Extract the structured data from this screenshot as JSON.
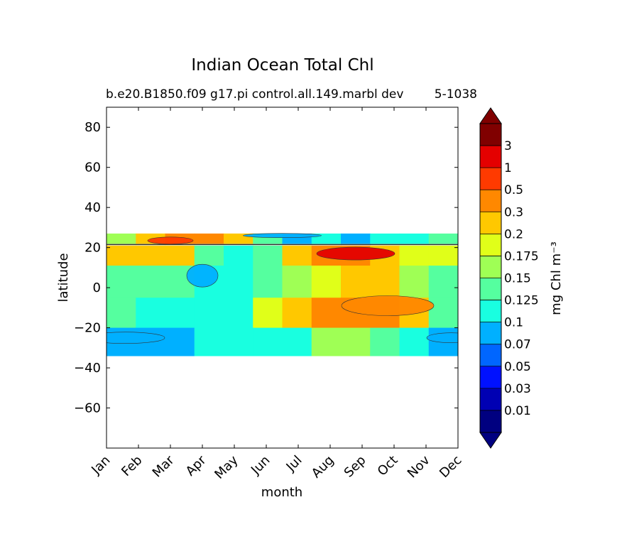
{
  "chart_data": {
    "type": "heatmap",
    "title": "Indian Ocean Total Chl",
    "subtitle_left": "b.e20.B1850.f09 g17.pi control.all.149.marbl dev",
    "subtitle_right": "5-1038",
    "xlabel": "month",
    "ylabel": "latitude",
    "x_categories": [
      "Jan",
      "Feb",
      "Mar",
      "Apr",
      "May",
      "Jun",
      "Jul",
      "Aug",
      "Sep",
      "Oct",
      "Nov",
      "Dec"
    ],
    "ylim": [
      -80,
      90
    ],
    "y_ticks": [
      80,
      60,
      40,
      20,
      0,
      -20,
      -40,
      -60
    ],
    "y_tick_labels": [
      "80",
      "60",
      "40",
      "20",
      "0",
      "−20",
      "−40",
      "−60"
    ],
    "data_lat_range": [
      -34,
      27
    ],
    "colorbar": {
      "label": "mg Chl m⁻³",
      "levels": [
        "0.01",
        "0.03",
        "0.05",
        "0.07",
        "0.1",
        "0.125",
        "0.15",
        "0.175",
        "0.2",
        "0.3",
        "0.5",
        "1",
        "3"
      ],
      "colors": [
        "#000080",
        "#0000b3",
        "#0011ff",
        "#0066ff",
        "#00b0ff",
        "#19ffe0",
        "#55ff9f",
        "#9fff55",
        "#e0ff19",
        "#ffc800",
        "#ff8800",
        "#ff3a00",
        "#e40000",
        "#800000"
      ],
      "extend_low": "#000080",
      "extend_high": "#800000"
    },
    "regions": [
      {
        "lat": [
          22,
          27
        ],
        "values": [
          0.15,
          0.2,
          0.3,
          0.3,
          0.2,
          0.125,
          0.07,
          0.1,
          0.07,
          0.1,
          0.1,
          0.125
        ]
      },
      {
        "lat": [
          11,
          21
        ],
        "values": [
          0.2,
          0.2,
          0.2,
          0.125,
          0.1,
          0.125,
          0.2,
          0.3,
          0.3,
          0.2,
          0.175,
          0.175
        ]
      },
      {
        "lat": [
          -5,
          11
        ],
        "values": [
          0.125,
          0.125,
          0.125,
          0.1,
          0.1,
          0.125,
          0.15,
          0.175,
          0.2,
          0.2,
          0.15,
          0.125
        ]
      },
      {
        "lat": [
          -20,
          -5
        ],
        "values": [
          0.125,
          0.1,
          0.1,
          0.1,
          0.1,
          0.175,
          0.2,
          0.3,
          0.3,
          0.3,
          0.2,
          0.125
        ]
      },
      {
        "lat": [
          -34,
          -20
        ],
        "values": [
          0.07,
          0.07,
          0.07,
          0.1,
          0.1,
          0.1,
          0.1,
          0.15,
          0.15,
          0.125,
          0.1,
          0.07
        ]
      }
    ]
  }
}
